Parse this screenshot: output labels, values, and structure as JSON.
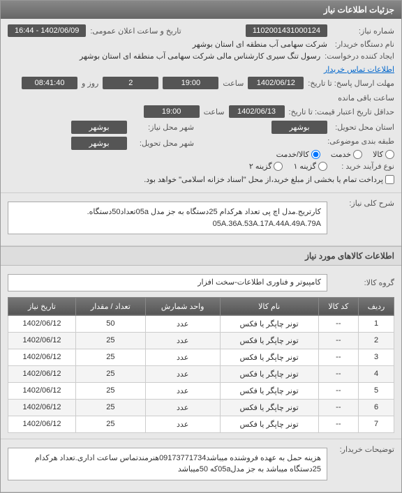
{
  "header": {
    "title": "جزئیات اطلاعات نیاز"
  },
  "fields": {
    "need_number": {
      "label": "شماره نیاز:",
      "value": "1102001431000124"
    },
    "announce_datetime": {
      "label": "تاریخ و ساعت اعلان عمومی:",
      "value": "1402/06/09 - 16:44"
    },
    "buyer_name": {
      "label": "نام دستگاه خریدار:",
      "value": "شرکت سهامی آب منطقه ای استان بوشهر"
    },
    "requester": {
      "label": "ایجاد کننده درخواست:",
      "value": "رسول تنگ سیری کارشناس مالی شرکت سهامی آب منطقه ای استان بوشهر",
      "link": "اطلاعات تماس خریدار"
    },
    "deadline": {
      "label": "مهلت ارسال پاسخ: تا تاریخ:",
      "date": "1402/06/12",
      "hour_label": "ساعت",
      "hour": "19:00",
      "day_label": "روز و",
      "days": "2",
      "remain_label": "ساعت باقی مانده",
      "remain": "08:41:40"
    },
    "credit_deadline": {
      "label": "حداقل تاریخ اعتبار قیمت: تا تاریخ:",
      "date": "1402/06/13",
      "hour_label": "ساعت",
      "hour": "19:00"
    },
    "need_city": {
      "label": "شهر محل نیاز:",
      "value": "بوشهر"
    },
    "province": {
      "label": "استان محل تحویل:",
      "value": "بوشهر"
    },
    "deliver_city": {
      "label": "شهر محل تحویل:",
      "value": "بوشهر"
    },
    "subject_class": {
      "label": "طبقه بندی موضوعی:",
      "option1": "کالا",
      "option2": "خدمت",
      "option3": "کالا/خدمت"
    },
    "process_type": {
      "label": "نوع فرآیند خرید :",
      "option1": "گزینه ۱",
      "option2": "گزینه ۲",
      "note": "پرداخت تمام یا بخشی از مبلغ خرید،از محل \"اسناد خزانه اسلامی\" خواهد بود."
    },
    "general_label": "شرح کلی نیاز:",
    "general_desc": "کارتریج.مدل اچ پی تعداد هرکدام 25دستگاه به جز مدل 05aتعداد50دستگاه.\n05A.36A.53A.17A.44A.49A.79A"
  },
  "items_section": {
    "title": "اطلاعات کالاهای مورد نیاز",
    "group_label": "گروه کالا:",
    "group_value": "کامپیوتر و فناوری اطلاعات-سخت افزار",
    "columns": [
      "ردیف",
      "کد کالا",
      "نام کالا",
      "واحد شمارش",
      "تعداد / مقدار",
      "تاریخ نیاز"
    ],
    "rows": [
      [
        "1",
        "--",
        "تونر چاپگر یا فکس",
        "عدد",
        "50",
        "1402/06/12"
      ],
      [
        "2",
        "--",
        "تونر چاپگر یا فکس",
        "عدد",
        "25",
        "1402/06/12"
      ],
      [
        "3",
        "--",
        "تونر چاپگر یا فکس",
        "عدد",
        "25",
        "1402/06/12"
      ],
      [
        "4",
        "--",
        "تونر چاپگر یا فکس",
        "عدد",
        "25",
        "1402/06/12"
      ],
      [
        "5",
        "--",
        "تونر چاپگر یا فکس",
        "عدد",
        "25",
        "1402/06/12"
      ],
      [
        "6",
        "--",
        "تونر چاپگر یا فکس",
        "عدد",
        "25",
        "1402/06/12"
      ],
      [
        "7",
        "--",
        "تونر چاپگر یا فکس",
        "عدد",
        "25",
        "1402/06/12"
      ]
    ]
  },
  "buyer_note": {
    "label": "توضیحات خریدار:",
    "value": "هزینه حمل به عهده فروشنده میباشد09173771734هنرمندتماس ساعت اداری.تعداد هرکدام 25دستگاه میباشد به جز مدل05aکه 50میباشد"
  }
}
